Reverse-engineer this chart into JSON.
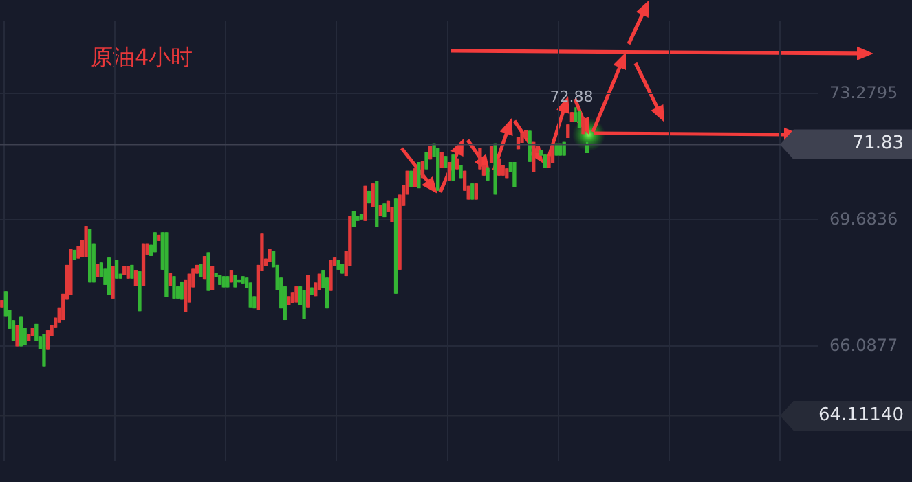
{
  "chart_data": {
    "type": "candlestick",
    "title": "原油4小时",
    "categories": [
      null,
      null,
      null,
      null,
      null,
      null,
      null,
      null,
      null,
      null,
      null,
      null,
      null,
      null,
      null,
      null,
      null,
      null,
      null,
      null,
      null,
      null,
      null,
      null,
      null,
      null,
      null,
      null,
      null,
      null,
      null,
      null,
      null,
      null,
      null,
      null,
      null,
      null,
      null,
      null,
      null,
      null,
      null,
      null,
      null,
      null,
      null,
      null,
      null,
      null,
      null,
      null,
      null,
      null,
      null,
      null,
      null,
      null,
      null,
      null,
      null,
      null,
      null,
      null,
      null,
      null,
      null,
      null,
      null,
      null,
      null,
      null,
      null,
      null,
      null,
      null,
      null,
      null,
      null,
      null,
      null,
      null,
      null,
      null,
      null,
      null,
      null,
      null,
      null,
      null,
      null,
      null,
      null,
      null,
      null,
      null,
      null,
      null,
      null,
      null,
      null,
      null,
      null,
      null,
      null,
      null,
      null,
      null,
      null,
      null,
      null,
      null,
      null,
      null,
      null,
      null,
      null,
      null,
      null,
      null,
      null,
      null,
      null,
      null,
      null,
      null,
      null,
      null,
      null,
      null,
      null,
      null,
      null,
      null,
      null,
      null,
      null,
      null,
      null,
      null,
      null,
      null,
      null,
      null,
      null,
      null,
      null,
      null,
      null,
      null,
      null,
      null,
      null,
      null,
      null,
      null,
      null,
      null,
      null,
      null,
      null,
      null,
      null,
      null,
      null,
      null,
      null,
      null,
      null,
      null,
      null,
      null,
      null,
      null,
      null,
      null,
      null,
      null,
      null,
      null,
      null,
      null,
      null,
      null,
      null,
      null,
      null,
      null,
      null,
      null,
      null,
      null,
      null,
      null,
      null,
      null,
      null,
      null,
      null,
      null,
      null,
      null,
      null,
      null,
      null,
      null,
      null,
      null,
      null,
      null,
      null,
      null,
      null,
      null
    ],
    "ohlc": [
      [
        67.39,
        67.39,
        67.21,
        67.21
      ],
      [
        66.96,
        67.64,
        66.96,
        67.64
      ],
      [
        66.6,
        67.1,
        66.6,
        67.1
      ],
      [
        66.25,
        66.82,
        66.25,
        66.82
      ],
      [
        66.68,
        66.68,
        66.1,
        66.1
      ],
      [
        66.1,
        66.93,
        66.1,
        66.93
      ],
      [
        66.14,
        66.6,
        66.14,
        66.6
      ],
      [
        66.43,
        66.43,
        66.25,
        66.25
      ],
      [
        66.6,
        66.6,
        66.39,
        66.39
      ],
      [
        66.25,
        66.71,
        66.25,
        66.71
      ],
      [
        66.03,
        66.35,
        66.03,
        66.35
      ],
      [
        65.53,
        66.43,
        65.53,
        66.43
      ],
      [
        66.53,
        66.53,
        66.0,
        66.0
      ],
      [
        66.68,
        66.68,
        66.39,
        66.39
      ],
      [
        66.89,
        66.89,
        66.64,
        66.64
      ],
      [
        67.18,
        67.18,
        66.78,
        66.78
      ],
      [
        67.57,
        67.57,
        66.85,
        66.85
      ],
      [
        68.39,
        68.39,
        67.43,
        67.43
      ],
      [
        68.85,
        68.85,
        67.57,
        67.57
      ],
      [
        68.57,
        68.82,
        68.57,
        68.82
      ],
      [
        68.92,
        68.92,
        68.6,
        68.6
      ],
      [
        69.1,
        69.1,
        68.64,
        68.64
      ],
      [
        69.5,
        69.5,
        68.64,
        68.64
      ],
      [
        67.92,
        69.42,
        67.92,
        69.42
      ],
      [
        67.92,
        69.0,
        67.92,
        69.0
      ],
      [
        68.42,
        68.42,
        68.07,
        68.07
      ],
      [
        68.07,
        68.46,
        68.07,
        68.46
      ],
      [
        67.85,
        68.28,
        67.85,
        68.28
      ],
      [
        67.57,
        68.6,
        67.57,
        68.6
      ],
      [
        68.35,
        68.35,
        67.46,
        67.46
      ],
      [
        68.03,
        68.53,
        68.03,
        68.53
      ],
      [
        68.03,
        68.14,
        68.03,
        68.14
      ],
      [
        68.35,
        68.35,
        68.14,
        68.14
      ],
      [
        68.35,
        68.35,
        68.03,
        68.03
      ],
      [
        68.03,
        68.39,
        68.03,
        68.39
      ],
      [
        68.25,
        68.25,
        67.82,
        67.82
      ],
      [
        67.1,
        68.21,
        67.1,
        68.21
      ],
      [
        69.0,
        69.0,
        67.82,
        67.82
      ],
      [
        69.0,
        69.0,
        68.71,
        68.71
      ],
      [
        68.67,
        68.96,
        68.67,
        68.96
      ],
      [
        68.78,
        69.32,
        68.78,
        69.32
      ],
      [
        69.25,
        69.25,
        69.1,
        69.1
      ],
      [
        68.28,
        69.32,
        68.28,
        69.32
      ],
      [
        67.5,
        69.32,
        67.5,
        69.32
      ],
      [
        68.17,
        68.17,
        67.82,
        67.82
      ],
      [
        67.46,
        68.07,
        67.46,
        68.07
      ],
      [
        67.46,
        67.78,
        67.46,
        67.78
      ],
      [
        67.43,
        67.92,
        67.43,
        67.92
      ],
      [
        67.96,
        67.96,
        67.07,
        67.07
      ],
      [
        68.14,
        68.14,
        67.35,
        67.35
      ],
      [
        68.28,
        68.28,
        67.78,
        67.78
      ],
      [
        68.39,
        68.39,
        68.17,
        68.17
      ],
      [
        68.07,
        68.42,
        68.07,
        68.42
      ],
      [
        68.64,
        68.64,
        68.0,
        68.0
      ],
      [
        67.68,
        68.75,
        67.68,
        68.75
      ],
      [
        68.35,
        68.35,
        67.71,
        67.71
      ],
      [
        68.07,
        68.17,
        68.07,
        68.17
      ],
      [
        67.85,
        68.1,
        67.85,
        68.1
      ],
      [
        67.78,
        68.07,
        67.78,
        68.07
      ],
      [
        67.78,
        68.07,
        67.78,
        68.07
      ],
      [
        68.25,
        68.25,
        67.92,
        67.92
      ],
      [
        67.78,
        68.1,
        67.78,
        68.1
      ],
      [
        67.92,
        67.96,
        67.92,
        67.96
      ],
      [
        67.89,
        68.07,
        67.89,
        68.07
      ],
      [
        67.75,
        68.03,
        67.75,
        68.03
      ],
      [
        67.21,
        67.89,
        67.21,
        67.89
      ],
      [
        67.18,
        67.5,
        67.18,
        67.5
      ],
      [
        68.39,
        68.39,
        67.14,
        67.14
      ],
      [
        69.28,
        69.28,
        68.25,
        68.25
      ],
      [
        68.57,
        68.57,
        68.39,
        68.39
      ],
      [
        68.85,
        68.85,
        68.5,
        68.5
      ],
      [
        68.35,
        68.78,
        68.35,
        68.78
      ],
      [
        67.71,
        68.39,
        67.71,
        68.39
      ],
      [
        67.18,
        68.03,
        67.18,
        68.03
      ],
      [
        66.85,
        67.78,
        66.85,
        67.78
      ],
      [
        67.5,
        67.5,
        67.28,
        67.28
      ],
      [
        67.6,
        67.6,
        67.32,
        67.32
      ],
      [
        67.78,
        67.78,
        67.35,
        67.35
      ],
      [
        67.28,
        67.78,
        67.28,
        67.78
      ],
      [
        66.89,
        67.68,
        66.89,
        67.68
      ],
      [
        68.1,
        68.1,
        67.21,
        67.21
      ],
      [
        67.57,
        67.75,
        67.57,
        67.75
      ],
      [
        67.89,
        67.89,
        67.53,
        67.53
      ],
      [
        68.14,
        68.14,
        67.71,
        67.71
      ],
      [
        67.75,
        68.25,
        67.75,
        68.25
      ],
      [
        67.18,
        68.03,
        67.18,
        68.03
      ],
      [
        68.53,
        68.53,
        67.68,
        67.68
      ],
      [
        68.6,
        68.6,
        68.39,
        68.39
      ],
      [
        68.28,
        68.53,
        68.28,
        68.53
      ],
      [
        68.17,
        68.42,
        68.17,
        68.42
      ],
      [
        68.78,
        68.78,
        68.1,
        68.1
      ],
      [
        69.78,
        69.78,
        68.39,
        68.39
      ],
      [
        69.5,
        69.92,
        69.5,
        69.92
      ],
      [
        69.67,
        69.78,
        69.67,
        69.78
      ],
      [
        69.71,
        69.85,
        69.71,
        69.85
      ],
      [
        70.64,
        70.64,
        69.67,
        69.67
      ],
      [
        70.17,
        70.5,
        70.17,
        70.5
      ],
      [
        70.71,
        70.71,
        70.07,
        70.07
      ],
      [
        69.5,
        70.78,
        69.5,
        70.78
      ],
      [
        70.1,
        70.1,
        69.82,
        69.82
      ],
      [
        69.78,
        70.14,
        69.78,
        70.14
      ],
      [
        70.21,
        70.21,
        69.92,
        69.92
      ],
      [
        70.03,
        70.03,
        69.64,
        69.64
      ],
      [
        67.6,
        70.28,
        67.6,
        70.28
      ],
      [
        70.39,
        70.39,
        68.28,
        68.28
      ],
      [
        70.67,
        70.67,
        70.1,
        70.1
      ],
      [
        71.07,
        71.07,
        70.42,
        70.42
      ],
      [
        70.64,
        71.07,
        70.64,
        71.07
      ],
      [
        71.14,
        71.14,
        70.64,
        70.64
      ],
      [
        70.6,
        71.32,
        70.6,
        71.32
      ],
      [
        71.35,
        71.35,
        70.89,
        70.89
      ],
      [
        71.14,
        71.6,
        71.14,
        71.6
      ],
      [
        71.78,
        71.78,
        71.42,
        71.42
      ],
      [
        71.49,
        71.85,
        71.49,
        71.85
      ],
      [
        70.53,
        71.71,
        70.53,
        71.71
      ],
      [
        71.6,
        71.6,
        71.17,
        71.17
      ],
      [
        71.17,
        71.49,
        71.17,
        71.49
      ],
      [
        71.32,
        71.32,
        70.82,
        70.82
      ],
      [
        70.82,
        71.53,
        70.82,
        71.53
      ],
      [
        71.42,
        71.42,
        71.14,
        71.14
      ],
      [
        70.89,
        71.24,
        70.89,
        71.24
      ],
      [
        71.07,
        71.07,
        70.53,
        70.53
      ],
      [
        70.64,
        70.64,
        70.28,
        70.28
      ],
      [
        70.28,
        70.71,
        70.28,
        70.71
      ],
      [
        70.71,
        70.71,
        70.28,
        70.28
      ],
      [
        71.71,
        71.71,
        71.14,
        71.14
      ],
      [
        71.24,
        71.24,
        70.96,
        70.96
      ],
      [
        70.82,
        71.17,
        70.82,
        71.17
      ],
      [
        71.78,
        71.78,
        71.32,
        71.32
      ],
      [
        70.42,
        71.85,
        70.42,
        71.85
      ],
      [
        71.42,
        71.42,
        70.96,
        70.96
      ],
      [
        71.24,
        71.24,
        70.96,
        70.96
      ],
      [
        71.14,
        71.14,
        70.89,
        70.89
      ],
      [
        71.07,
        71.32,
        71.07,
        71.32
      ],
      [
        70.64,
        71.32,
        70.64,
        71.32
      ],
      [
        72.03,
        72.03,
        71.71,
        71.71
      ],
      [
        72.14,
        72.14,
        71.89,
        71.89
      ],
      [
        72.24,
        72.24,
        72.03,
        72.03
      ],
      [
        71.35,
        72.21,
        71.35,
        72.21
      ],
      [
        71.89,
        71.89,
        71.07,
        71.07
      ],
      [
        71.78,
        71.78,
        71.6,
        71.6
      ],
      [
        71.53,
        71.67,
        71.53,
        71.67
      ],
      [
        71.17,
        71.53,
        71.17,
        71.53
      ],
      [
        71.49,
        71.49,
        71.17,
        71.17
      ],
      [
        71.78,
        71.78,
        71.32,
        71.32
      ],
      [
        71.53,
        71.85,
        71.53,
        71.85
      ],
      [
        71.53,
        71.85,
        71.53,
        71.85
      ],
      [
        71.53,
        71.89,
        71.53,
        71.89
      ],
      [
        72.39,
        72.39,
        72.03,
        72.03
      ],
      [
        72.74,
        72.74,
        72.49,
        72.49
      ],
      [
        72.49,
        72.88,
        72.49,
        72.74
      ],
      [
        72.32,
        72.78,
        72.32,
        72.78
      ],
      [
        72.6,
        72.6,
        72.14,
        72.14
      ],
      [
        71.6,
        71.89,
        71.6,
        71.83
      ],
      null,
      null,
      null,
      null,
      null,
      null,
      null,
      null,
      null,
      null,
      null,
      null,
      null,
      null,
      null,
      null,
      null,
      null,
      null,
      null,
      null,
      null,
      null,
      null,
      null,
      null,
      null,
      null,
      null,
      null,
      null,
      null,
      null,
      null,
      null,
      null,
      null,
      null,
      null,
      null,
      null,
      null,
      null,
      null,
      null,
      null,
      null,
      null,
      null,
      null,
      null,
      null,
      null,
      null,
      null,
      null,
      null,
      null,
      null,
      null
    ],
    "ylim": [
      62.82,
      75.35
    ],
    "yticks": [
      73.2795,
      69.6836,
      66.0877
    ],
    "grid": true,
    "tick_labels": "y",
    "ref_lines": [
      {
        "axis": "y",
        "value": 71.83,
        "label": "71.83",
        "color": "#3e4150"
      },
      {
        "axis": "y",
        "value": 64.1114,
        "label": "64.11140",
        "color": "#262a37"
      }
    ],
    "annotations": [
      {
        "text": "72.88",
        "y": 72.88
      }
    ]
  }
}
